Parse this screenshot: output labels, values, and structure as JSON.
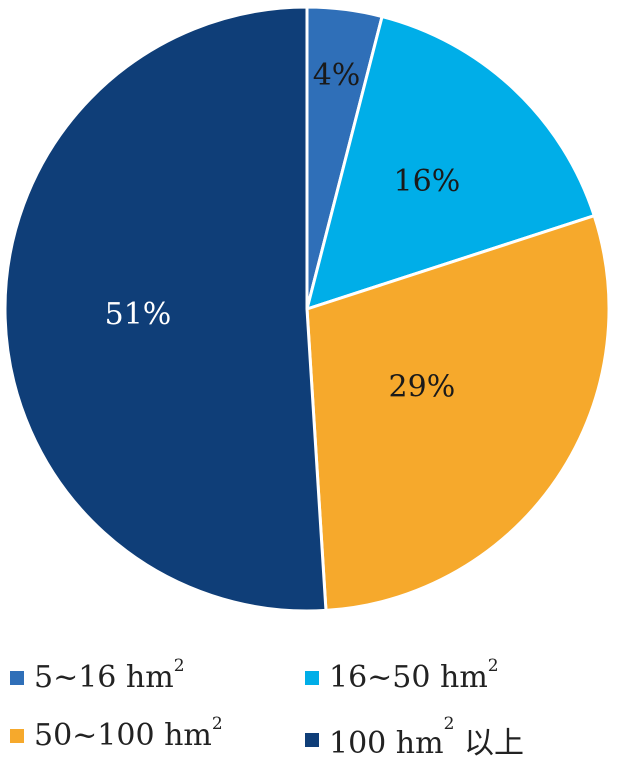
{
  "chart_data": {
    "type": "pie",
    "categories": [
      "5~16 hm²",
      "16~50 hm²",
      "50~100 hm²",
      "100 hm² 以上"
    ],
    "values": [
      4,
      16,
      29,
      51
    ],
    "labels": [
      "4%",
      "16%",
      "29%",
      "51%"
    ],
    "colors": [
      "#2f6fb8",
      "#00aee8",
      "#f6a92c",
      "#0f3e78"
    ],
    "label_colors": [
      "#1a1a1a",
      "#1a1a1a",
      "#1a1a1a",
      "#ffffff"
    ],
    "legend_position": "bottom",
    "title": ""
  },
  "legend": [
    {
      "pre": "5~16 hm",
      "sup": "2",
      "post": ""
    },
    {
      "pre": "16~50 hm",
      "sup": "2",
      "post": ""
    },
    {
      "pre": "50~100 hm",
      "sup": "2",
      "post": ""
    },
    {
      "pre": "100 hm",
      "sup": "2",
      "post": " 以上"
    }
  ]
}
